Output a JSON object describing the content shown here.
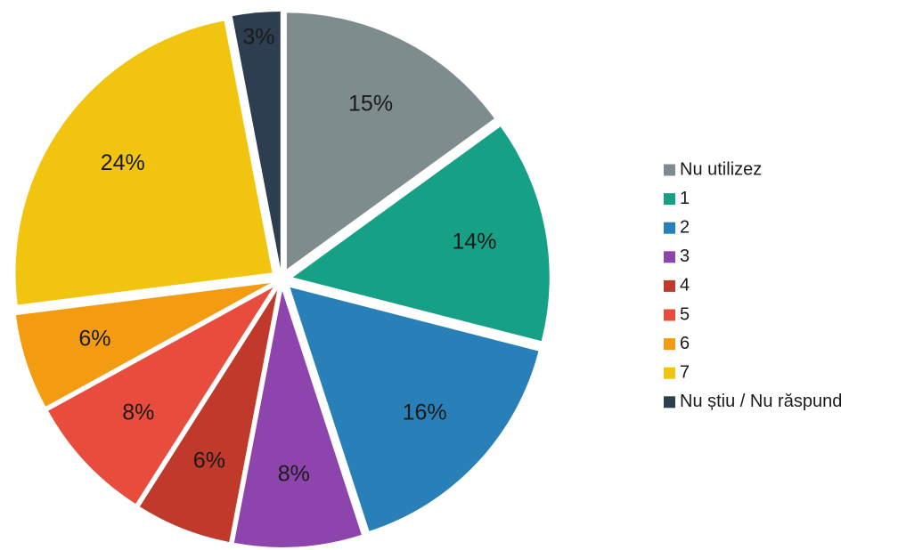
{
  "chart_data": {
    "type": "pie",
    "categories": [
      "Nu utilizez",
      "1",
      "2",
      "3",
      "4",
      "5",
      "6",
      "7",
      "Nu știu / Nu răspund"
    ],
    "values": [
      15,
      14,
      16,
      8,
      6,
      8,
      6,
      24,
      3
    ],
    "value_labels": [
      "15%",
      "14%",
      "16%",
      "8%",
      "6%",
      "8%",
      "6%",
      "24%",
      "3%"
    ],
    "colors": [
      "#7f8c8d",
      "#16a085",
      "#2980b9",
      "#8e44ad",
      "#c0392b",
      "#e74c3c",
      "#f39c12",
      "#f1c40f",
      "#2c3e50"
    ],
    "legend": "right"
  }
}
